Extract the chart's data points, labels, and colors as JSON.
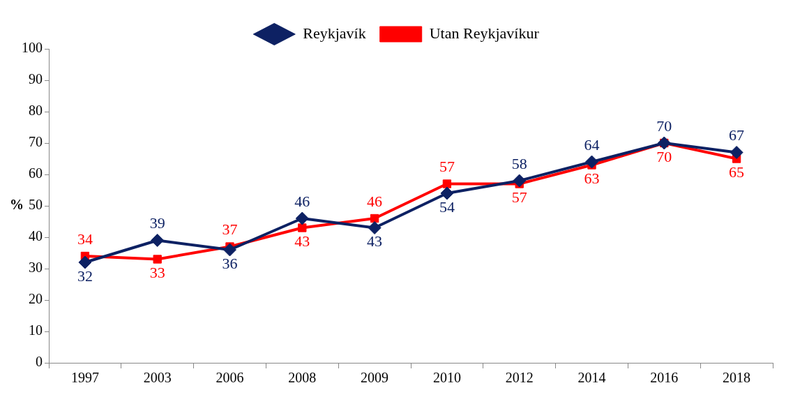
{
  "chart_data": {
    "type": "line",
    "ylabel": "%",
    "categories": [
      "1997",
      "2003",
      "2006",
      "2008",
      "2009",
      "2010",
      "2012",
      "2014",
      "2016",
      "2018"
    ],
    "series": [
      {
        "name": "Reykjavík",
        "color": "#0d2163",
        "marker": "diamond",
        "values": [
          32,
          39,
          36,
          46,
          43,
          54,
          58,
          64,
          70,
          67
        ]
      },
      {
        "name": "Utan Reykjavíkur",
        "color": "#ff0000",
        "marker": "square",
        "values": [
          34,
          33,
          37,
          43,
          46,
          57,
          57,
          63,
          70,
          65
        ]
      }
    ],
    "ylim": [
      0,
      100
    ],
    "yticks": [
      0,
      10,
      20,
      30,
      40,
      50,
      60,
      70,
      80,
      90,
      100
    ],
    "grid": false,
    "legend": "top",
    "data_labels": true,
    "line_style": "solid"
  }
}
